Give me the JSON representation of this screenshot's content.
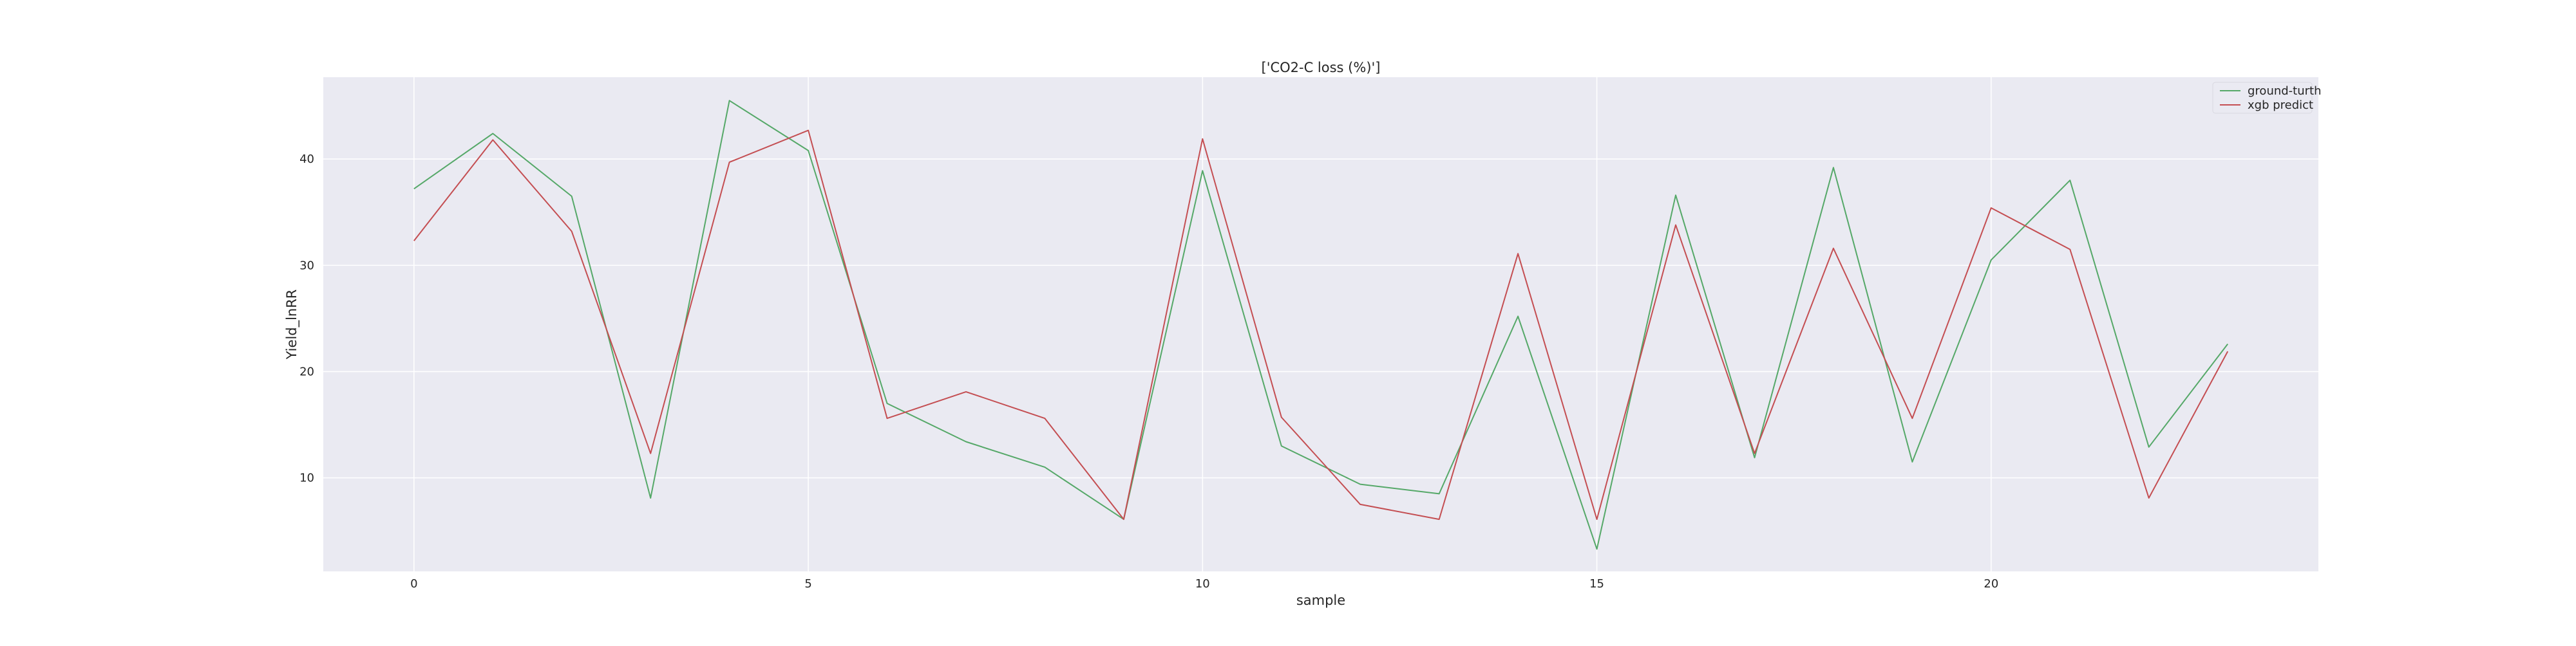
{
  "chart_data": {
    "type": "line",
    "title": "['CO2-C loss (%)']",
    "xlabel": "sample",
    "ylabel": "Yield_lnRR",
    "x": [
      0,
      1,
      2,
      3,
      4,
      5,
      6,
      7,
      8,
      9,
      10,
      11,
      12,
      13,
      14,
      15,
      16,
      17,
      18,
      19,
      20,
      21,
      22,
      23
    ],
    "xticks": [
      0,
      5,
      10,
      15,
      20
    ],
    "yticks": [
      10,
      20,
      30,
      40
    ],
    "xlim": [
      -1.15,
      24.15
    ],
    "ylim": [
      1.2,
      47.7
    ],
    "grid": true,
    "legend_position": "top-right",
    "series": [
      {
        "name": "ground-turth",
        "color": "#55a868",
        "values": [
          37.2,
          42.4,
          36.5,
          8.1,
          45.5,
          40.8,
          17.0,
          13.4,
          11.0,
          6.1,
          38.9,
          13.0,
          9.4,
          8.5,
          25.2,
          3.3,
          36.6,
          11.9,
          39.2,
          11.5,
          30.5,
          38.0,
          12.9,
          22.6
        ]
      },
      {
        "name": "xgb predict",
        "color": "#c44e52",
        "values": [
          32.3,
          41.8,
          33.2,
          12.3,
          39.7,
          42.7,
          15.6,
          18.1,
          15.6,
          6.1,
          41.9,
          15.7,
          7.5,
          6.1,
          31.1,
          6.1,
          33.8,
          12.3,
          31.6,
          15.6,
          35.4,
          31.5,
          8.1,
          21.9
        ]
      }
    ]
  }
}
